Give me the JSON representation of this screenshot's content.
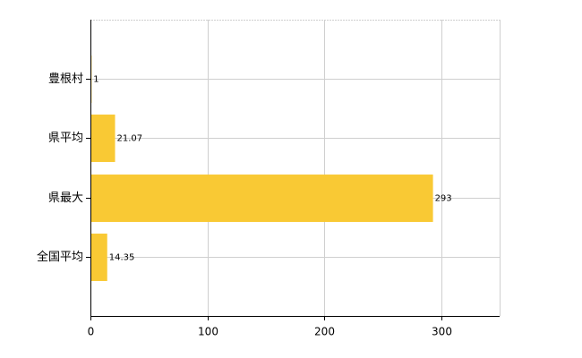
{
  "chart_data": {
    "type": "barh",
    "categories": [
      "豊根村",
      "県平均",
      "県最大",
      "全国平均"
    ],
    "values": [
      1,
      21.07,
      293,
      14.35
    ],
    "color": "#f9c934",
    "xlim": [
      0,
      350
    ],
    "xticks": [
      0,
      100,
      200,
      300
    ],
    "grid": true
  }
}
